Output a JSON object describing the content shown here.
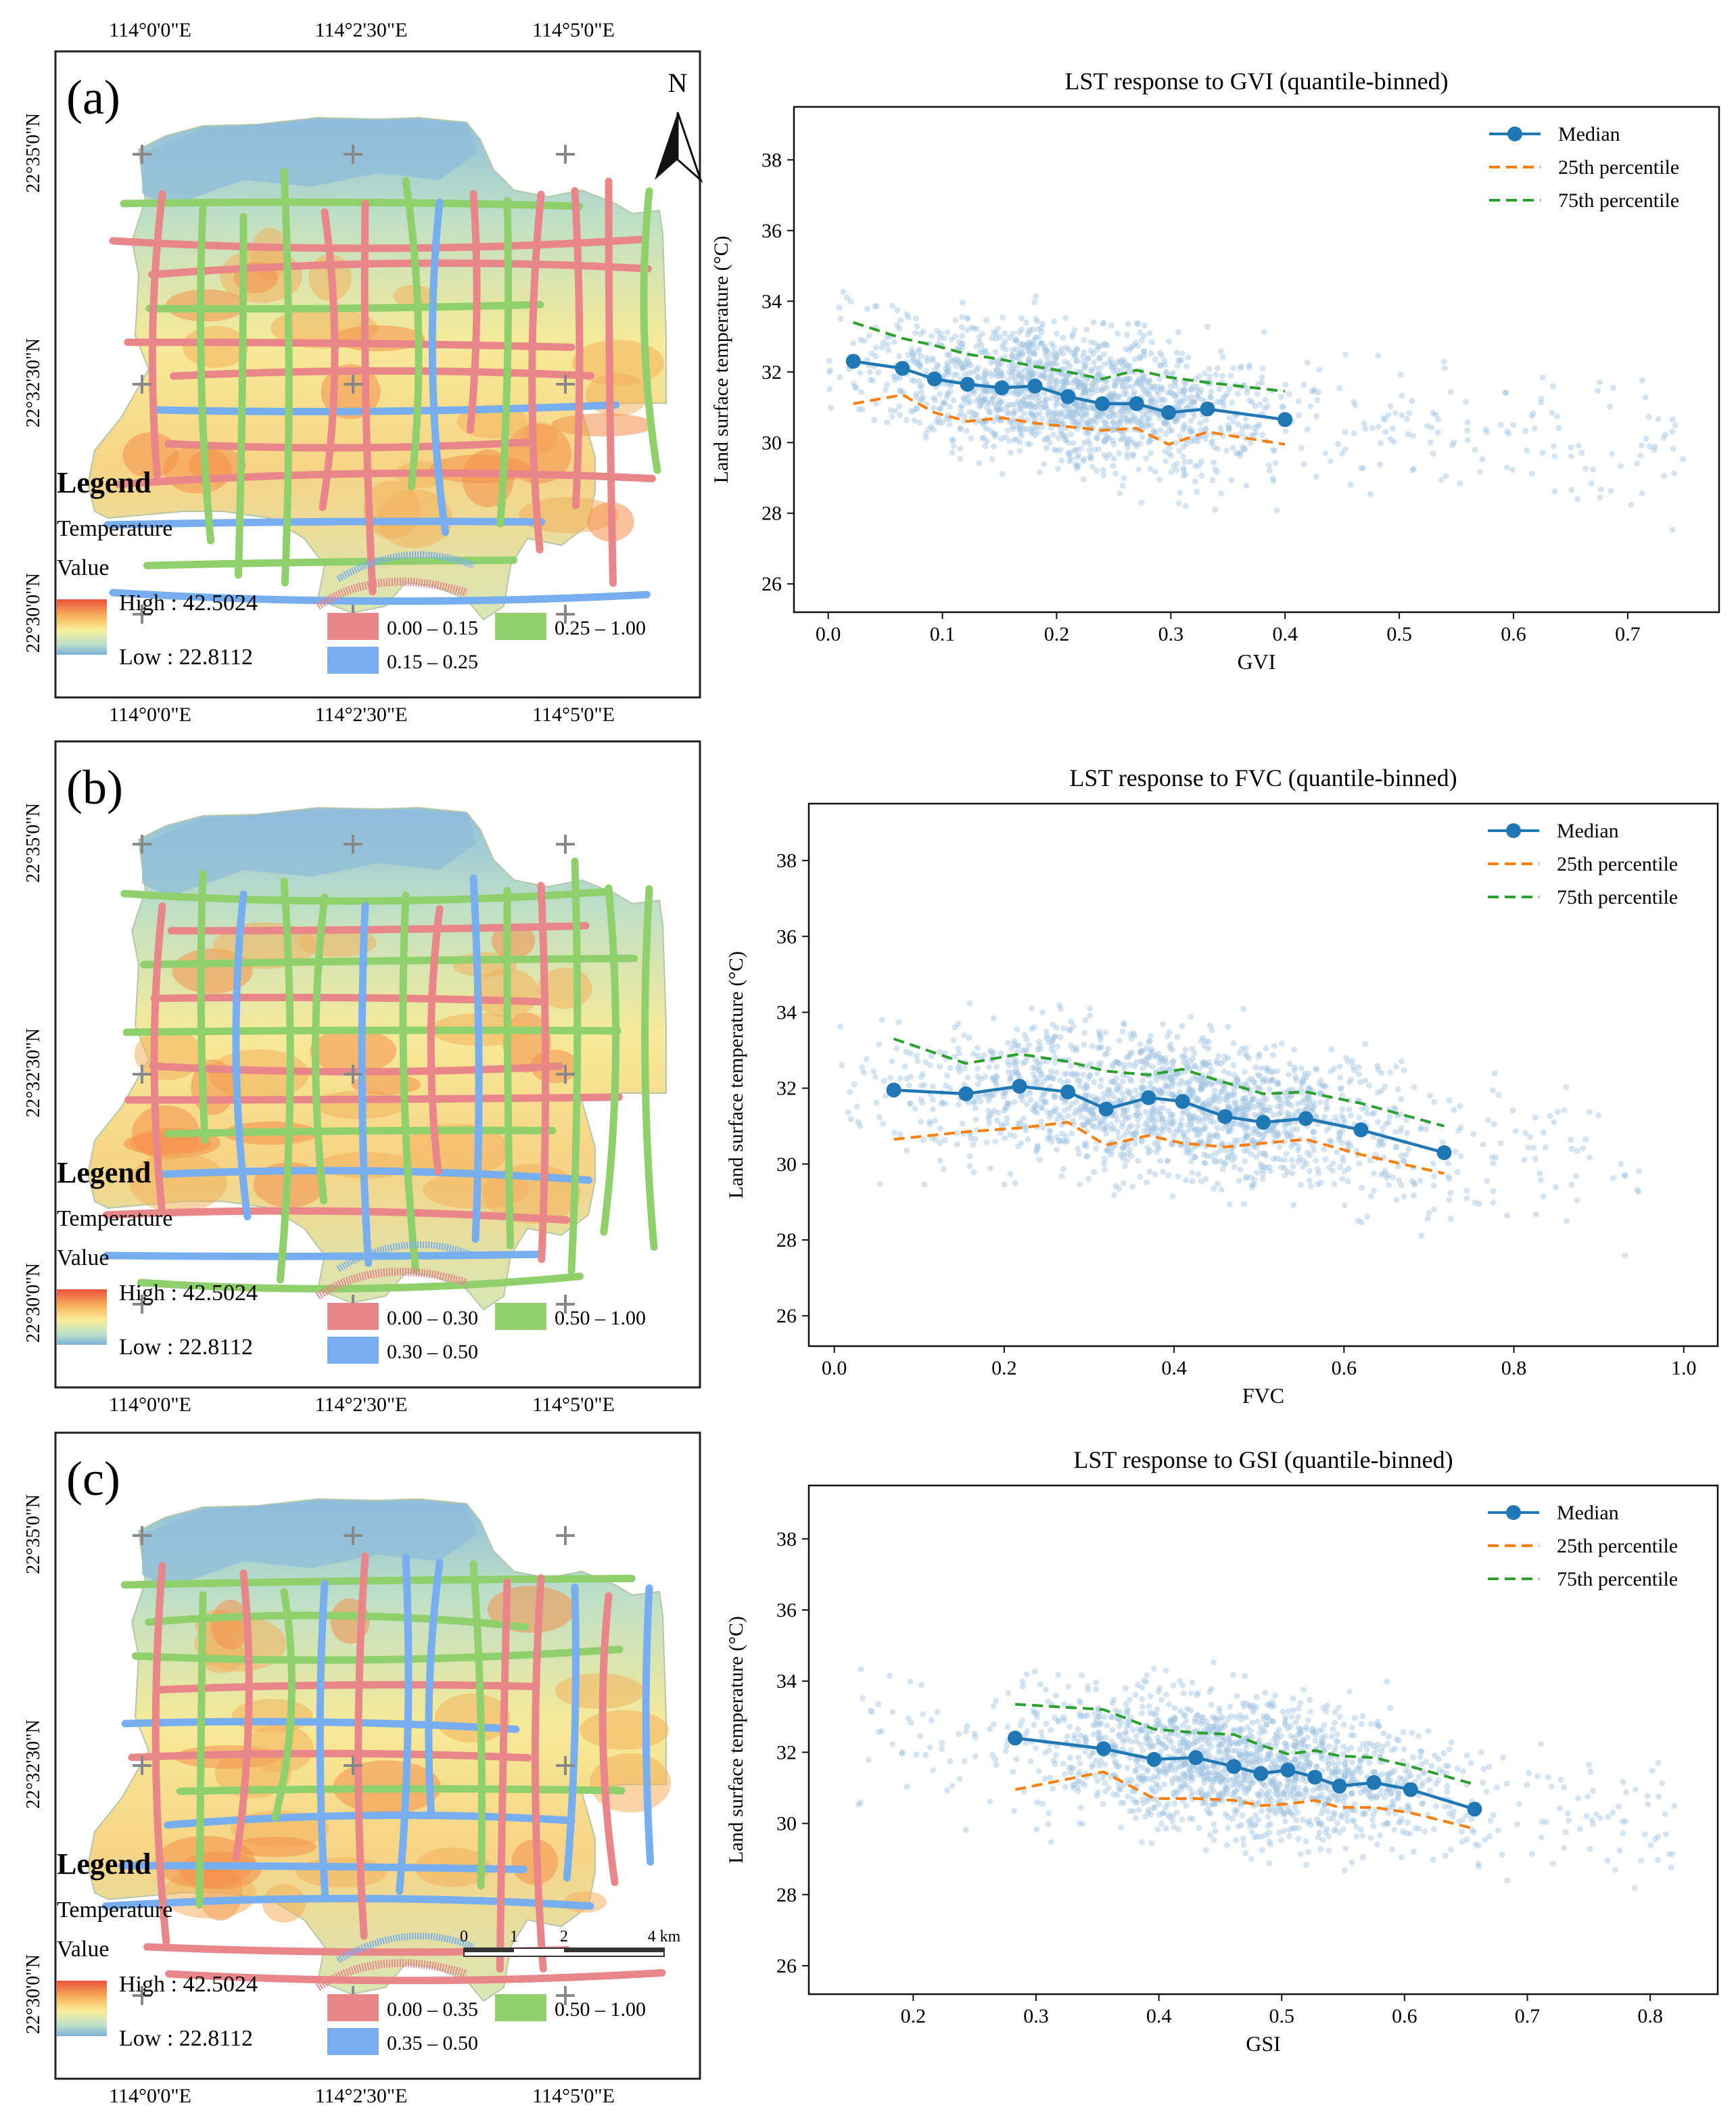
{
  "maps": [
    {
      "label": "(a)",
      "lon_ticks": [
        "114°0'0\"E",
        "114°2'30\"E",
        "114°5'0\"E"
      ],
      "lat_ticks": [
        "22°35'0\"N",
        "22°32'30\"N",
        "22°30'0\"N"
      ],
      "legend_title": "Legend",
      "legend_temp": "Temperature",
      "legend_value": "Value",
      "high": "High : 42.5024",
      "low": "Low : 22.8112",
      "classes": [
        {
          "label": "0.00 – 0.15",
          "color": "#e8868a"
        },
        {
          "label": "0.15 – 0.25",
          "color": "#76aef0"
        },
        {
          "label": "0.25 – 1.00",
          "color": "#8fd06c"
        }
      ],
      "north": "N"
    },
    {
      "label": "(b)",
      "lon_ticks": [
        "114°0'0\"E",
        "114°2'30\"E",
        "114°5'0\"E"
      ],
      "lat_ticks": [
        "22°35'0\"N",
        "22°32'30\"N",
        "22°30'0\"N"
      ],
      "legend_title": "Legend",
      "legend_temp": "Temperature",
      "legend_value": "Value",
      "high": "High : 42.5024",
      "low": "Low : 22.8112",
      "classes": [
        {
          "label": "0.00 – 0.30",
          "color": "#e8868a"
        },
        {
          "label": "0.30 – 0.50",
          "color": "#76aef0"
        },
        {
          "label": "0.50 – 1.00",
          "color": "#8fd06c"
        }
      ]
    },
    {
      "label": "(c)",
      "lon_ticks": [
        "114°0'0\"E",
        "114°2'30\"E",
        "114°5'0\"E"
      ],
      "lat_ticks": [
        "22°35'0\"N",
        "22°32'30\"N",
        "22°30'0\"N"
      ],
      "legend_title": "Legend",
      "legend_temp": "Temperature",
      "legend_value": "Value",
      "high": "High : 42.5024",
      "low": "Low : 22.8112",
      "classes": [
        {
          "label": "0.00 – 0.35",
          "color": "#e8868a"
        },
        {
          "label": "0.35 – 0.50",
          "color": "#76aef0"
        },
        {
          "label": "0.50 – 1.00",
          "color": "#8fd06c"
        }
      ],
      "scale_labels": [
        "0",
        "1",
        "2",
        "4 km"
      ]
    }
  ],
  "colors": {
    "median": "#1f77b4",
    "p25": "#ff7f0e",
    "p75": "#2ca02c",
    "scatter": "#9fc3e0"
  },
  "chart_data": [
    {
      "type": "line",
      "title": "LST response to GVI (quantile-binned)",
      "xlabel": "GVI",
      "ylabel": "Land surface temperature (°C)",
      "xlim": [
        -0.03,
        0.78
      ],
      "ylim": [
        25.2,
        39.5
      ],
      "xticks": [
        0.0,
        0.1,
        0.2,
        0.3,
        0.4,
        0.5,
        0.6,
        0.7
      ],
      "xtick_labels": [
        "0.0",
        "0.1",
        "0.2",
        "0.3",
        "0.4",
        "0.5",
        "0.6",
        "0.7"
      ],
      "yticks": [
        26,
        28,
        30,
        32,
        34,
        36,
        38
      ],
      "legend": [
        "Median",
        "25th percentile",
        "75th percentile"
      ],
      "scatter_range": [
        0.0,
        0.75
      ],
      "x": [
        0.022,
        0.065,
        0.093,
        0.122,
        0.152,
        0.181,
        0.21,
        0.24,
        0.27,
        0.298,
        0.332,
        0.4
      ],
      "series": [
        {
          "name": "Median",
          "values": [
            32.3,
            32.1,
            31.8,
            31.65,
            31.55,
            31.6,
            31.3,
            31.1,
            31.1,
            30.85,
            30.95,
            30.65
          ]
        },
        {
          "name": "25th percentile",
          "values": [
            31.1,
            31.35,
            30.85,
            30.6,
            30.7,
            30.55,
            30.45,
            30.35,
            30.4,
            29.95,
            30.3,
            29.95
          ]
        },
        {
          "name": "75th percentile",
          "values": [
            33.4,
            32.95,
            32.75,
            32.5,
            32.35,
            32.15,
            32.0,
            31.8,
            32.05,
            31.85,
            31.7,
            31.45
          ]
        }
      ]
    },
    {
      "type": "line",
      "title": "LST response to FVC (quantile-binned)",
      "xlabel": "FVC",
      "ylabel": "Land surface temperature (°C)",
      "xlim": [
        -0.03,
        1.04
      ],
      "ylim": [
        25.2,
        39.5
      ],
      "xticks": [
        0.0,
        0.2,
        0.4,
        0.6,
        0.8,
        1.0
      ],
      "xtick_labels": [
        "0.0",
        "0.2",
        "0.4",
        "0.6",
        "0.8",
        "1.0"
      ],
      "yticks": [
        26,
        28,
        30,
        32,
        34,
        36,
        38
      ],
      "legend": [
        "Median",
        "25th percentile",
        "75th percentile"
      ],
      "scatter_range": [
        0.0,
        0.95
      ],
      "x": [
        0.07,
        0.155,
        0.218,
        0.275,
        0.32,
        0.37,
        0.41,
        0.46,
        0.505,
        0.555,
        0.62,
        0.718
      ],
      "series": [
        {
          "name": "Median",
          "values": [
            31.95,
            31.85,
            32.05,
            31.9,
            31.45,
            31.75,
            31.65,
            31.25,
            31.1,
            31.2,
            30.9,
            30.3
          ]
        },
        {
          "name": "25th percentile",
          "values": [
            30.65,
            30.85,
            30.95,
            31.1,
            30.5,
            30.75,
            30.55,
            30.45,
            30.55,
            30.65,
            30.25,
            29.75
          ]
        },
        {
          "name": "75th percentile",
          "values": [
            33.3,
            32.65,
            32.9,
            32.7,
            32.45,
            32.35,
            32.5,
            32.15,
            31.85,
            31.9,
            31.6,
            31.0
          ]
        }
      ]
    },
    {
      "type": "line",
      "title": "LST response to GSI (quantile-binned)",
      "xlabel": "GSI",
      "ylabel": "Land surface temperature (°C)",
      "xlim": [
        0.115,
        0.855
      ],
      "ylim": [
        25.2,
        39.5
      ],
      "xticks": [
        0.2,
        0.3,
        0.4,
        0.5,
        0.6,
        0.7,
        0.8
      ],
      "xtick_labels": [
        "0.2",
        "0.3",
        "0.4",
        "0.5",
        "0.6",
        "0.7",
        "0.8"
      ],
      "yticks": [
        26,
        28,
        30,
        32,
        34,
        36,
        38
      ],
      "legend": [
        "Median",
        "25th percentile",
        "75th percentile"
      ],
      "scatter_range": [
        0.15,
        0.82
      ],
      "x": [
        0.283,
        0.355,
        0.396,
        0.43,
        0.461,
        0.483,
        0.505,
        0.527,
        0.547,
        0.575,
        0.605,
        0.657
      ],
      "series": [
        {
          "name": "Median",
          "values": [
            32.4,
            32.1,
            31.8,
            31.85,
            31.6,
            31.4,
            31.5,
            31.3,
            31.05,
            31.15,
            30.95,
            30.4
          ]
        },
        {
          "name": "25th percentile",
          "values": [
            30.95,
            31.45,
            30.7,
            30.7,
            30.65,
            30.5,
            30.55,
            30.65,
            30.45,
            30.45,
            30.3,
            29.85
          ]
        },
        {
          "name": "75th percentile",
          "values": [
            33.35,
            33.2,
            32.65,
            32.55,
            32.5,
            32.2,
            31.95,
            32.05,
            31.9,
            31.85,
            31.6,
            31.1
          ]
        }
      ]
    }
  ]
}
